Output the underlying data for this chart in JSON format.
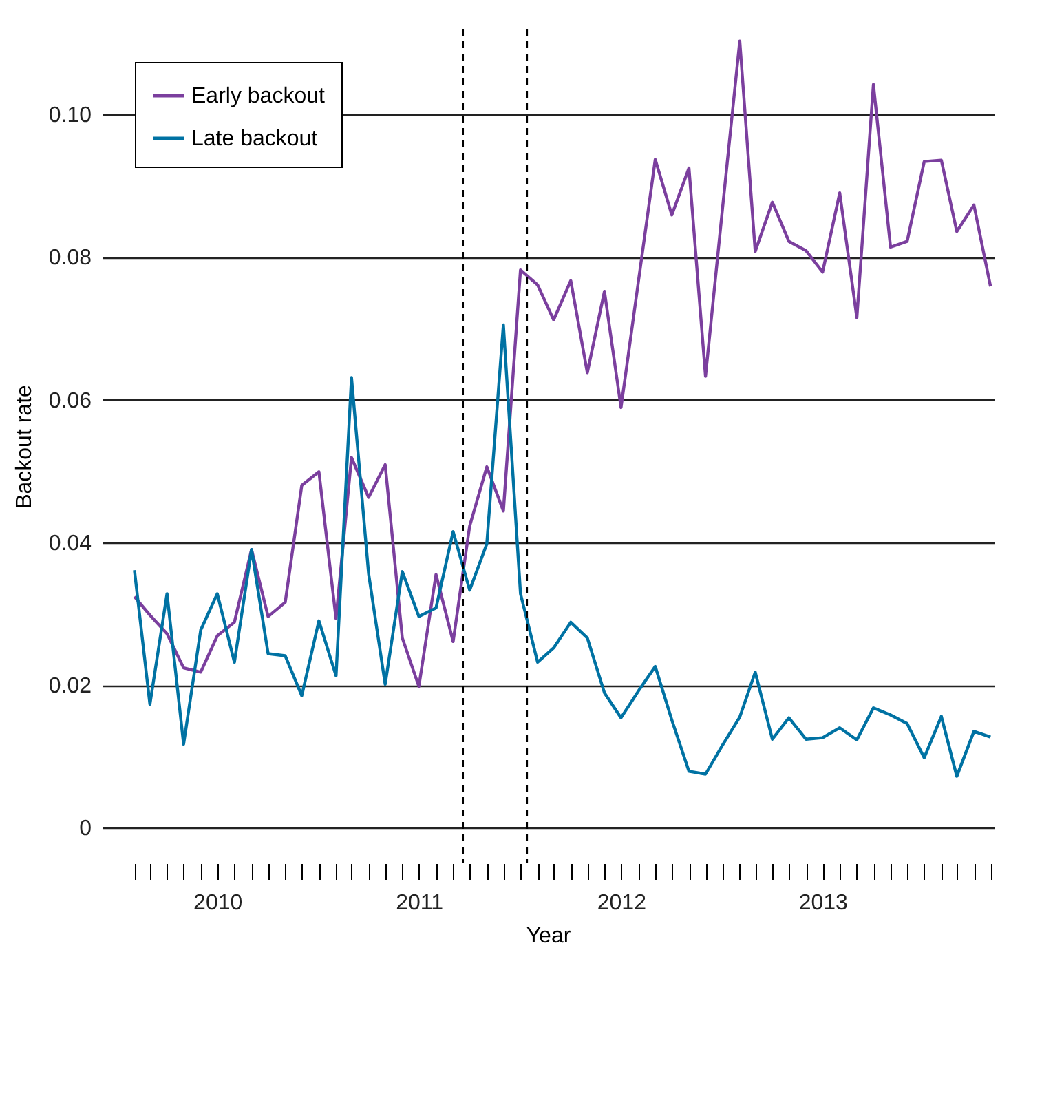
{
  "chart_data": {
    "type": "line",
    "xlabel": "Year",
    "ylabel": "Backout rate",
    "x": [
      "2010-02",
      "2010-03",
      "2010-04",
      "2010-05",
      "2010-06",
      "2010-07",
      "2010-08",
      "2010-09",
      "2010-10",
      "2010-11",
      "2010-12",
      "2011-01",
      "2011-02",
      "2011-03",
      "2011-04",
      "2011-05",
      "2011-06",
      "2011-07",
      "2011-08",
      "2011-09",
      "2011-10",
      "2011-11",
      "2011-12",
      "2012-01",
      "2012-02",
      "2012-03",
      "2012-04",
      "2012-05",
      "2012-06",
      "2012-07",
      "2012-08",
      "2012-09",
      "2012-10",
      "2012-11",
      "2012-12",
      "2013-01",
      "2013-02",
      "2013-03",
      "2013-04",
      "2013-05",
      "2013-06",
      "2013-07",
      "2013-08",
      "2013-09",
      "2013-10",
      "2013-11",
      "2013-12",
      "2014-01",
      "2014-02",
      "2014-03",
      "2014-04",
      "2014-05"
    ],
    "series": [
      {
        "name": "Early backout",
        "color": "#7b3f9e",
        "values": [
          0.0324,
          0.0298,
          0.0272,
          0.0224,
          0.0218,
          0.0269,
          0.0288,
          0.039,
          0.0296,
          0.0316,
          0.048,
          0.0499,
          0.0293,
          0.0519,
          0.0463,
          0.0509,
          0.0266,
          0.0198,
          0.0355,
          0.0261,
          0.0423,
          0.0506,
          0.0444,
          0.0782,
          0.0761,
          0.0712,
          0.0767,
          0.0638,
          0.0752,
          0.0589,
          0.0763,
          0.0937,
          0.0859,
          0.0925,
          0.0633,
          0.087,
          0.1103,
          0.0808,
          0.0877,
          0.0822,
          0.0809,
          0.0779,
          0.089,
          0.0715,
          0.1042,
          0.0814,
          0.0822,
          0.0934,
          0.0936,
          0.0836,
          0.0873,
          0.0759
        ]
      },
      {
        "name": "Late backout",
        "color": "#0072a3",
        "values": [
          0.0361,
          0.0173,
          0.0328,
          0.0117,
          0.0277,
          0.0328,
          0.0232,
          0.039,
          0.0244,
          0.0241,
          0.0185,
          0.029,
          0.0213,
          0.0631,
          0.0356,
          0.0201,
          0.0359,
          0.0296,
          0.0308,
          0.0415,
          0.0333,
          0.0398,
          0.0705,
          0.0328,
          0.0232,
          0.0252,
          0.0288,
          0.0266,
          0.0189,
          0.0154,
          0.0191,
          0.0226,
          0.0151,
          0.0079,
          0.0075,
          0.0116,
          0.0155,
          0.0218,
          0.0124,
          0.0154,
          0.0124,
          0.0126,
          0.014,
          0.0123,
          0.0168,
          0.0158,
          0.0146,
          0.0098,
          0.0156,
          0.0072,
          0.0135,
          0.0127
        ]
      }
    ],
    "xlim": [
      "2009-12-04",
      "2014-05-07"
    ],
    "xticks": [
      {
        "value": "2010-02",
        "label": null
      },
      {
        "value": "2010-03",
        "label": null
      },
      {
        "value": "2010-04",
        "label": null
      },
      {
        "value": "2010-05",
        "label": null
      },
      {
        "value": "2010-06",
        "label": null
      },
      {
        "value": "2010-07",
        "label": "2010"
      },
      {
        "value": "2010-08",
        "label": null
      },
      {
        "value": "2010-09",
        "label": null
      },
      {
        "value": "2010-10",
        "label": null
      },
      {
        "value": "2010-11",
        "label": null
      },
      {
        "value": "2010-12",
        "label": null
      },
      {
        "value": "2011-01",
        "label": null
      },
      {
        "value": "2011-02",
        "label": null
      },
      {
        "value": "2011-03",
        "label": null
      },
      {
        "value": "2011-04",
        "label": null
      },
      {
        "value": "2011-05",
        "label": null
      },
      {
        "value": "2011-06",
        "label": null
      },
      {
        "value": "2011-07",
        "label": "2011"
      },
      {
        "value": "2011-08",
        "label": null
      },
      {
        "value": "2011-09",
        "label": null
      },
      {
        "value": "2011-10",
        "label": null
      },
      {
        "value": "2011-11",
        "label": null
      },
      {
        "value": "2011-12",
        "label": null
      },
      {
        "value": "2012-01",
        "label": null
      },
      {
        "value": "2012-02",
        "label": null
      },
      {
        "value": "2012-03",
        "label": null
      },
      {
        "value": "2012-04",
        "label": null
      },
      {
        "value": "2012-05",
        "label": null
      },
      {
        "value": "2012-06",
        "label": null
      },
      {
        "value": "2012-07",
        "label": "2012"
      },
      {
        "value": "2012-08",
        "label": null
      },
      {
        "value": "2012-09",
        "label": null
      },
      {
        "value": "2012-10",
        "label": null
      },
      {
        "value": "2012-11",
        "label": null
      },
      {
        "value": "2012-12",
        "label": null
      },
      {
        "value": "2013-01",
        "label": null
      },
      {
        "value": "2013-02",
        "label": null
      },
      {
        "value": "2013-03",
        "label": null
      },
      {
        "value": "2013-04",
        "label": null
      },
      {
        "value": "2013-05",
        "label": null
      },
      {
        "value": "2013-06",
        "label": null
      },
      {
        "value": "2013-07",
        "label": "2013"
      },
      {
        "value": "2013-08",
        "label": null
      },
      {
        "value": "2013-09",
        "label": null
      },
      {
        "value": "2013-10",
        "label": null
      },
      {
        "value": "2013-11",
        "label": null
      },
      {
        "value": "2013-12",
        "label": null
      },
      {
        "value": "2014-01",
        "label": null
      },
      {
        "value": "2014-02",
        "label": null
      },
      {
        "value": "2014-03",
        "label": null
      },
      {
        "value": "2014-04",
        "label": null
      },
      {
        "value": "2014-05",
        "label": null
      }
    ],
    "ylim": [
      -0.005,
      0.112
    ],
    "yticks": [
      0,
      0.02,
      0.04,
      0.06,
      0.08,
      {
        "value": 0.1,
        "label": "0.10"
      }
    ],
    "ref_lines": [
      {
        "axis": "x",
        "value": "2011-09-19",
        "label": null,
        "color": "#000000",
        "line_style": "dashed"
      },
      {
        "axis": "x",
        "value": "2012-01-13",
        "label": null,
        "color": "#000000",
        "line_style": "dashed"
      }
    ],
    "grid": "y",
    "legend": "top left",
    "marker": "none",
    "line_style": "solid"
  }
}
